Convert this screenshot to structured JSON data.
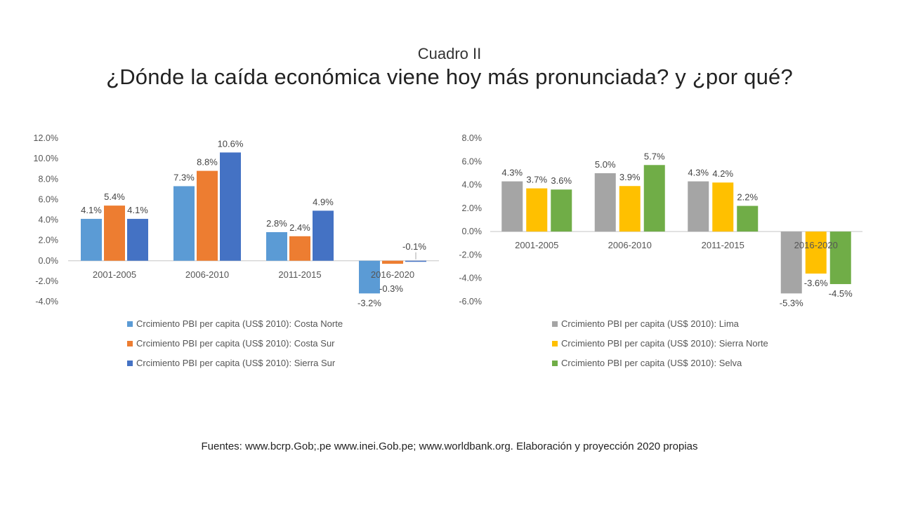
{
  "slide": {
    "subtitle": "Cuadro II",
    "title": "¿Dónde la caída económica viene hoy más pronunciada? y ¿por qué?",
    "source": "Fuentes: www.bcrp.Gob;.pe www.inei.Gob.pe; www.worldbank.org. Elaboración y proyección 2020 propias"
  },
  "chart_data": [
    {
      "type": "bar",
      "categories": [
        "2001-2005",
        "2006-2010",
        "2011-2015",
        "2016-2020"
      ],
      "ylim": [
        -4,
        12
      ],
      "yticks": [
        "12.0%",
        "10.0%",
        "8.0%",
        "6.0%",
        "4.0%",
        "2.0%",
        "0.0%",
        "-2.0%",
        "-4.0%"
      ],
      "ytick_values": [
        12,
        10,
        8,
        6,
        4,
        2,
        0,
        -2,
        -4
      ],
      "legend_position": "bottom",
      "series": [
        {
          "name": "Crcimiento PBI per capita (US$ 2010): Costa Norte",
          "color": "#5B9BD5",
          "values": [
            4.1,
            7.3,
            2.8,
            -3.2
          ],
          "labels": [
            "4.1%",
            "7.3%",
            "2.8%",
            "-3.2%"
          ]
        },
        {
          "name": "Crcimiento PBI per capita (US$ 2010): Costa Sur",
          "color": "#ED7D31",
          "values": [
            5.4,
            8.8,
            2.4,
            -0.3
          ],
          "labels": [
            "5.4%",
            "8.8%",
            "2.4%",
            "-0.3%"
          ]
        },
        {
          "name": "Crcimiento PBI per capita (US$ 2010): Sierra Sur",
          "color": "#4472C4",
          "values": [
            4.1,
            10.6,
            4.9,
            -0.1
          ],
          "labels": [
            "4.1%",
            "10.6%",
            "4.9%",
            "-0.1%"
          ]
        }
      ]
    },
    {
      "type": "bar",
      "categories": [
        "2001-2005",
        "2006-2010",
        "2011-2015",
        "2016-2020"
      ],
      "ylim": [
        -6,
        8
      ],
      "yticks": [
        "8.0%",
        "6.0%",
        "4.0%",
        "2.0%",
        "0.0%",
        "-2.0%",
        "-4.0%",
        "-6.0%"
      ],
      "ytick_values": [
        8,
        6,
        4,
        2,
        0,
        -2,
        -4,
        -6
      ],
      "legend_position": "bottom",
      "series": [
        {
          "name": "Crcimiento PBI per capita (US$ 2010): Lima",
          "color": "#A5A5A5",
          "values": [
            4.3,
            5.0,
            4.3,
            -5.3
          ],
          "labels": [
            "4.3%",
            "5.0%",
            "4.3%",
            "-5.3%"
          ]
        },
        {
          "name": "Crcimiento PBI per capita (US$ 2010): Sierra Norte",
          "color": "#FFC000",
          "values": [
            3.7,
            3.9,
            4.2,
            -3.6
          ],
          "labels": [
            "3.7%",
            "3.9%",
            "4.2%",
            "-3.6%"
          ]
        },
        {
          "name": "Crcimiento PBI per capita (US$ 2010): Selva",
          "color": "#70AD47",
          "values": [
            3.6,
            5.7,
            2.2,
            -4.5
          ],
          "labels": [
            "3.6%",
            "5.7%",
            "2.2%",
            "-4.5%"
          ]
        }
      ]
    }
  ]
}
